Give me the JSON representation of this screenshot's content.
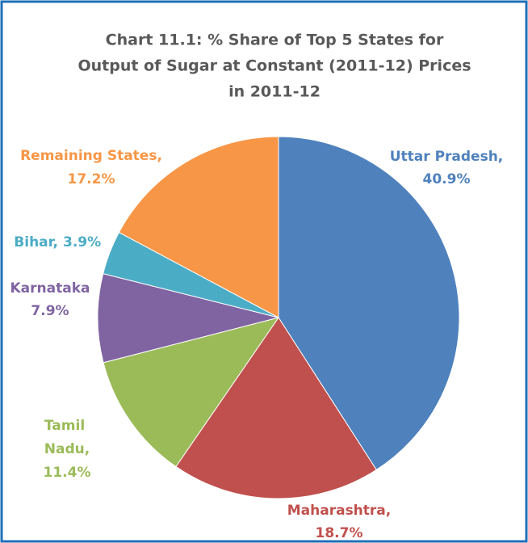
{
  "chart_data": {
    "type": "pie",
    "title": [
      "Chart 11.1: % Share of Top 5 States for",
      "Output of Sugar at Constant (2011-12) Prices",
      "in 2011-12"
    ],
    "categories": [
      "Uttar Pradesh,",
      "Maharashtra,",
      "Tamil Nadu,",
      "Karnataka",
      "Bihar,",
      "Remaining States,"
    ],
    "values": [
      40.9,
      18.7,
      11.4,
      7.9,
      3.9,
      17.2
    ],
    "value_labels": [
      "40.9%",
      "18.7%",
      "11.4%",
      "7.9%",
      "3.9%",
      "17.2%"
    ],
    "colors": [
      "#4f81bd",
      "#c0504d",
      "#9bbb59",
      "#8064a2",
      "#4bacc6",
      "#f79646"
    ]
  }
}
